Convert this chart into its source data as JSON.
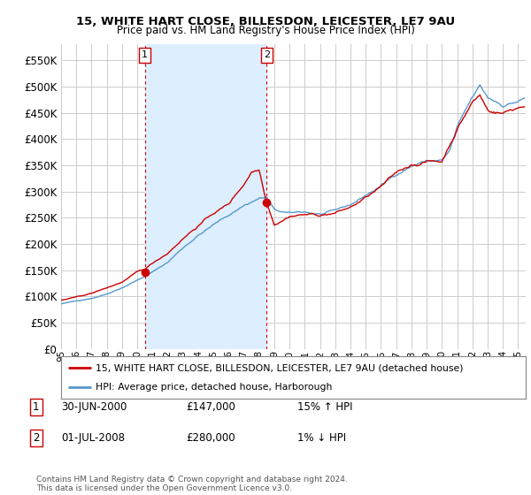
{
  "title": "15, WHITE HART CLOSE, BILLESDON, LEICESTER, LE7 9AU",
  "subtitle": "Price paid vs. HM Land Registry's House Price Index (HPI)",
  "ytick_values": [
    0,
    50000,
    100000,
    150000,
    200000,
    250000,
    300000,
    350000,
    400000,
    450000,
    500000,
    550000
  ],
  "ylim": [
    0,
    580000
  ],
  "legend_line1": "15, WHITE HART CLOSE, BILLESDON, LEICESTER, LE7 9AU (detached house)",
  "legend_line2": "HPI: Average price, detached house, Harborough",
  "annotation1_label": "1",
  "annotation1_date": "30-JUN-2000",
  "annotation1_price": "£147,000",
  "annotation1_hpi": "15% ↑ HPI",
  "annotation2_label": "2",
  "annotation2_date": "01-JUL-2008",
  "annotation2_price": "£280,000",
  "annotation2_hpi": "1% ↓ HPI",
  "footer": "Contains HM Land Registry data © Crown copyright and database right 2024.\nThis data is licensed under the Open Government Licence v3.0.",
  "red_color": "#cc0000",
  "blue_color": "#5599cc",
  "shade_color": "#ddeeff",
  "sale1_x": 2000.5,
  "sale1_y": 147000,
  "sale2_x": 2008.5,
  "sale2_y": 280000,
  "xmin": 1995.0,
  "xmax": 2025.5,
  "xtick_years": [
    1995,
    1996,
    1997,
    1998,
    1999,
    2000,
    2001,
    2002,
    2003,
    2004,
    2005,
    2006,
    2007,
    2008,
    2009,
    2010,
    2011,
    2012,
    2013,
    2014,
    2015,
    2016,
    2017,
    2018,
    2019,
    2020,
    2021,
    2022,
    2023,
    2024,
    2025
  ]
}
